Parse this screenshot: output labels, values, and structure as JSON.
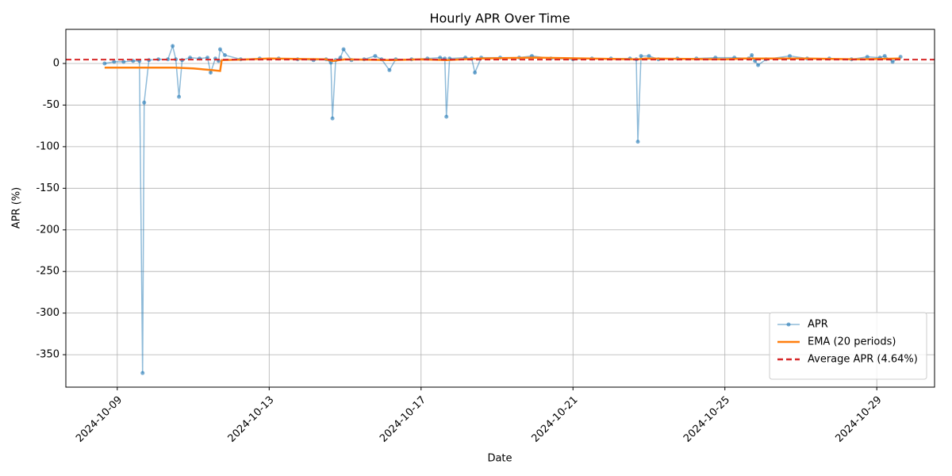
{
  "chart_data": {
    "type": "line",
    "title": "Hourly APR Over Time",
    "x_label": "Date",
    "y_label": "APR (%)",
    "xlim": [
      "2024-10-07T15:30",
      "2024-10-30T12:30"
    ],
    "xticks": [
      "2024-10-09",
      "2024-10-13",
      "2024-10-17",
      "2024-10-21",
      "2024-10-25",
      "2024-10-29"
    ],
    "ylim": [
      -389,
      41
    ],
    "yticks": [
      -350,
      -300,
      -250,
      -200,
      -150,
      -100,
      -50,
      0
    ],
    "grid": true,
    "legend": "lower right",
    "series": [
      {
        "name": "APR",
        "color": "#1f77b4",
        "markers": true,
        "x": [
          "2024-10-08T16:00",
          "2024-10-08T22:00",
          "2024-10-09T04:00",
          "2024-10-09T10:00",
          "2024-10-09T14:00",
          "2024-10-09T16:00",
          "2024-10-09T17:00",
          "2024-10-09T20:00",
          "2024-10-10T02:00",
          "2024-10-10T08:00",
          "2024-10-10T11:00",
          "2024-10-10T13:00",
          "2024-10-10T15:00",
          "2024-10-10T17:00",
          "2024-10-10T22:00",
          "2024-10-11T04:00",
          "2024-10-11T09:00",
          "2024-10-11T11:00",
          "2024-10-11T14:00",
          "2024-10-11T16:00",
          "2024-10-11T17:00",
          "2024-10-11T20:00",
          "2024-10-12T06:00",
          "2024-10-12T18:00",
          "2024-10-13T06:00",
          "2024-10-13T18:00",
          "2024-10-14T04:00",
          "2024-10-14T12:00",
          "2024-10-14T15:00",
          "2024-10-14T16:00",
          "2024-10-14T18:00",
          "2024-10-14T21:00",
          "2024-10-14T23:00",
          "2024-10-15T04:00",
          "2024-10-15T12:00",
          "2024-10-15T19:00",
          "2024-10-15T23:00",
          "2024-10-16T04:00",
          "2024-10-16T08:00",
          "2024-10-16T18:00",
          "2024-10-17T04:00",
          "2024-10-17T12:00",
          "2024-10-17T15:00",
          "2024-10-17T16:00",
          "2024-10-17T18:00",
          "2024-10-18T04:00",
          "2024-10-18T08:00",
          "2024-10-18T10:00",
          "2024-10-18T14:00",
          "2024-10-19T02:00",
          "2024-10-19T14:00",
          "2024-10-19T22:00",
          "2024-10-20T10:00",
          "2024-10-21T00:00",
          "2024-10-21T12:00",
          "2024-10-22T00:00",
          "2024-10-22T12:00",
          "2024-10-22T16:00",
          "2024-10-22T17:00",
          "2024-10-22T19:00",
          "2024-10-23T00:00",
          "2024-10-23T06:00",
          "2024-10-23T18:00",
          "2024-10-24T06:00",
          "2024-10-24T18:00",
          "2024-10-25T06:00",
          "2024-10-25T15:00",
          "2024-10-25T17:00",
          "2024-10-25T19:00",
          "2024-10-25T21:00",
          "2024-10-26T02:00",
          "2024-10-26T17:00",
          "2024-10-27T04:00",
          "2024-10-27T18:00",
          "2024-10-28T08:00",
          "2024-10-28T18:00",
          "2024-10-29T02:00",
          "2024-10-29T05:00",
          "2024-10-29T10:00",
          "2024-10-29T15:00"
        ],
        "values": [
          0,
          2,
          2,
          3,
          3,
          -372,
          -47,
          4,
          5,
          5,
          21,
          5,
          -40,
          4,
          7,
          6,
          7,
          -11,
          6,
          3,
          17,
          10,
          5,
          6,
          6,
          5,
          4,
          5,
          1,
          -66,
          4,
          7,
          17,
          4,
          5,
          9,
          5,
          -8,
          5,
          5,
          6,
          7,
          6,
          -64,
          6,
          7,
          6,
          -11,
          7,
          7,
          7,
          9,
          6,
          5,
          6,
          6,
          6,
          5,
          -94,
          9,
          9,
          5,
          6,
          6,
          7,
          7,
          6,
          10,
          3,
          -2,
          5,
          9,
          6,
          6,
          5,
          8,
          7,
          9,
          2,
          8
        ]
      },
      {
        "name": "EMA (20 periods)",
        "color": "#ff7f0e",
        "markers": false,
        "x": [
          "2024-10-08T16:00",
          "2024-10-10T12:00",
          "2024-10-11T00:00",
          "2024-10-11T12:00",
          "2024-10-11T17:00",
          "2024-10-11T18:00",
          "2024-10-12T12:00",
          "2024-10-13T00:00",
          "2024-10-14T12:00",
          "2024-10-14T16:00",
          "2024-10-15T00:00",
          "2024-10-16T04:00",
          "2024-10-17T00:00",
          "2024-10-17T16:00",
          "2024-10-18T12:00",
          "2024-10-20T00:00",
          "2024-10-22T17:00",
          "2024-10-22T22:00",
          "2024-10-25T00:00",
          "2024-10-25T12:00",
          "2024-10-27T00:00",
          "2024-10-28T12:00",
          "2024-10-29T15:00"
        ],
        "values": [
          -5,
          -5,
          -6,
          -8,
          -9,
          4,
          5,
          6,
          5,
          3,
          5,
          4,
          5,
          4,
          6,
          7,
          5,
          6,
          5,
          6,
          6,
          5,
          6
        ]
      }
    ],
    "hlines": [
      {
        "name": "Average APR (4.64%)",
        "value": 4.64,
        "color": "#d62728"
      }
    ]
  }
}
